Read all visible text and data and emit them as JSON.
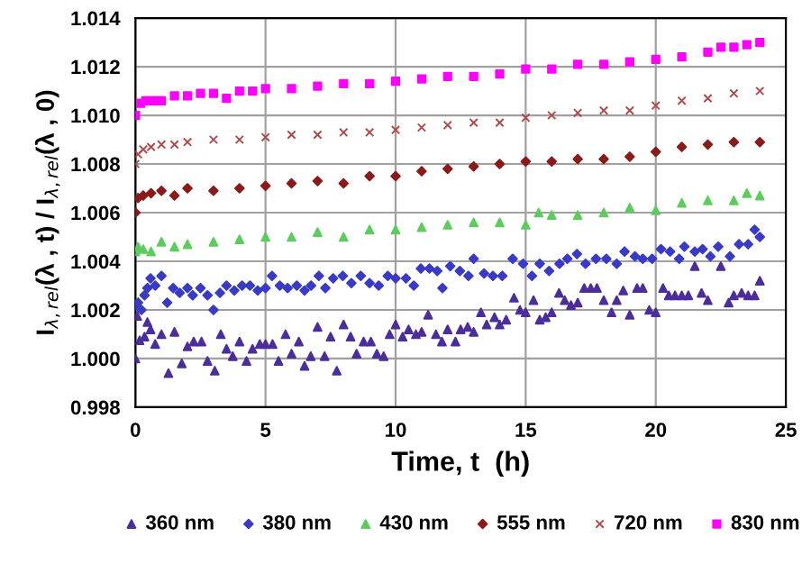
{
  "chart_data": {
    "type": "scatter",
    "xlabel": "Time, t  (h)",
    "ylabel": "I$_{λ,rel}$(λ , t) / I$_{λ,rel}$(λ , 0)",
    "xlim": [
      0,
      25
    ],
    "xticks": [
      0,
      5,
      10,
      15,
      20,
      25
    ],
    "ylim": [
      0.998,
      1.014
    ],
    "yticks": [
      {
        "value": 0.998,
        "label": "0.998"
      },
      {
        "value": 1.0,
        "label": "1.000"
      },
      {
        "value": 1.002,
        "label": "1.002"
      },
      {
        "value": 1.004,
        "label": "1.004"
      },
      {
        "value": 1.006,
        "label": "1.006"
      },
      {
        "value": 1.008,
        "label": "1.008"
      },
      {
        "value": 1.01,
        "label": "1.010"
      },
      {
        "value": 1.012,
        "label": "1.012"
      },
      {
        "value": 1.014,
        "label": "1.014"
      }
    ],
    "grid": true,
    "legend": "bottom",
    "series": [
      {
        "name": "360 nm",
        "color": "#4b2d9b",
        "marker": "triangle",
        "x": [
          0,
          0.07,
          0.16,
          0.35,
          0.46,
          0.58,
          0.76,
          1.0,
          1.27,
          1.5,
          1.78,
          2.0,
          2.24,
          2.54,
          2.77,
          3.05,
          3.28,
          3.5,
          3.74,
          4.0,
          4.27,
          4.5,
          4.78,
          5.0,
          5.27,
          5.5,
          5.77,
          6.0,
          6.28,
          6.5,
          6.74,
          7.0,
          7.27,
          7.5,
          7.74,
          8.0,
          8.27,
          8.5,
          8.77,
          9.05,
          9.28,
          9.54,
          9.77,
          10.0,
          10.27,
          10.5,
          10.78,
          11.0,
          11.25,
          11.55,
          11.78,
          12.0,
          12.3,
          12.5,
          12.77,
          13.0,
          13.28,
          13.5,
          13.8,
          14.0,
          14.25,
          14.55,
          14.78,
          15.0,
          15.3,
          15.54,
          15.77,
          16.0,
          16.28,
          16.5,
          16.74,
          17.0,
          17.25,
          17.5,
          17.74,
          18.0,
          18.3,
          18.5,
          18.75,
          19.0,
          19.28,
          19.5,
          19.75,
          20.0,
          20.28,
          20.5,
          20.74,
          21.0,
          21.25,
          21.5,
          21.76,
          22.0,
          22.5,
          22.8,
          23.0,
          23.3,
          23.55,
          23.8,
          24.0
        ],
        "values": [
          1.0,
          1.00175,
          1.00075,
          1.0009,
          1.0015,
          1.0012,
          1.0006,
          1.001,
          0.9994,
          1.0011,
          0.9998,
          1.0005,
          1.0007,
          1.0007,
          0.9999,
          0.9995,
          1.001,
          1.0004,
          1.0001,
          1.0007,
          0.9999,
          1.0004,
          1.0006,
          1.0006,
          1.0006,
          0.9999,
          1.001,
          1.0002,
          1.0007,
          0.9997,
          1.0001,
          1.0013,
          1.0001,
          1.0009,
          0.9995,
          1.0014,
          1.0009,
          1.0002,
          1.0007,
          1.0007,
          1.0002,
          1.0001,
          1.001,
          1.0014,
          1.0009,
          1.0012,
          1.001,
          1.0011,
          1.0018,
          1.001,
          1.0007,
          1.0012,
          1.0007,
          1.0012,
          1.0013,
          1.0011,
          1.0019,
          1.0014,
          1.0017,
          1.0014,
          1.0016,
          1.0025,
          1.002,
          1.0019,
          1.0024,
          1.0016,
          1.0017,
          1.0019,
          1.0027,
          1.0024,
          1.0022,
          1.0023,
          1.0029,
          1.0029,
          1.0029,
          1.0024,
          1.0019,
          1.0024,
          1.0028,
          1.0018,
          1.0029,
          1.0029,
          1.002,
          1.0019,
          1.0029,
          1.0026,
          1.0026,
          1.0026,
          1.0026,
          1.0038,
          1.0027,
          1.0024,
          1.0038,
          1.0023,
          1.0026,
          1.0027,
          1.0026,
          1.0026,
          1.0032
        ]
      },
      {
        "name": "380 nm",
        "color": "#3a3ac8",
        "marker": "diamond",
        "x": [
          0,
          0.1,
          0.23,
          0.35,
          0.46,
          0.58,
          0.76,
          1.0,
          1.22,
          1.45,
          1.7,
          2.0,
          2.2,
          2.5,
          2.77,
          3.0,
          3.25,
          3.5,
          3.8,
          4.1,
          4.4,
          4.7,
          5.0,
          5.25,
          5.55,
          5.85,
          6.2,
          6.5,
          6.75,
          7.05,
          7.3,
          7.6,
          7.97,
          8.3,
          8.66,
          9.0,
          9.35,
          9.7,
          10.0,
          10.4,
          10.7,
          10.97,
          11.3,
          11.6,
          11.8,
          12.1,
          12.47,
          12.8,
          13.0,
          13.4,
          13.74,
          14.1,
          14.5,
          14.9,
          15.24,
          15.54,
          15.9,
          16.3,
          16.6,
          16.97,
          17.3,
          17.7,
          18.1,
          18.5,
          18.8,
          19.2,
          19.5,
          19.86,
          20.2,
          20.55,
          20.9,
          21.1,
          21.5,
          21.8,
          22.1,
          22.4,
          22.85,
          23.2,
          23.55,
          23.8,
          24.0
        ],
        "values": [
          1.0022,
          1.0023,
          1.002,
          1.0026,
          1.0029,
          1.0033,
          1.003,
          1.0034,
          1.0023,
          1.0029,
          1.0027,
          1.0029,
          1.0026,
          1.0029,
          1.0026,
          1.002,
          1.0027,
          1.003,
          1.0028,
          1.003,
          1.003,
          1.0028,
          1.0029,
          1.0034,
          1.003,
          1.0029,
          1.003,
          1.0028,
          1.003,
          1.0034,
          1.0029,
          1.0033,
          1.0034,
          1.0031,
          1.0034,
          1.0031,
          1.003,
          1.0034,
          1.0033,
          1.0033,
          1.003,
          1.0037,
          1.0037,
          1.0036,
          1.0029,
          1.0038,
          1.0036,
          1.0034,
          1.0041,
          1.0035,
          1.0034,
          1.0034,
          1.0041,
          1.0039,
          1.0034,
          1.0039,
          1.0036,
          1.0039,
          1.0041,
          1.0043,
          1.0039,
          1.0041,
          1.0041,
          1.0039,
          1.0044,
          1.0042,
          1.0041,
          1.0041,
          1.0045,
          1.0044,
          1.0041,
          1.0046,
          1.0044,
          1.0045,
          1.0042,
          1.0046,
          1.0042,
          1.0047,
          1.0047,
          1.0053,
          1.005
        ]
      },
      {
        "name": "430 nm",
        "color": "#5ccc5c",
        "marker": "triangle",
        "x": [
          0,
          0.1,
          0.3,
          0.6,
          1,
          1.5,
          2,
          3,
          4,
          5,
          6,
          7,
          8,
          9,
          10,
          11,
          12,
          13,
          14,
          15,
          15.5,
          16,
          17,
          18,
          19,
          20,
          21,
          22,
          23,
          23.5,
          24
        ],
        "values": [
          1.0044,
          1.0046,
          1.0045,
          1.0044,
          1.0048,
          1.0046,
          1.0047,
          1.0048,
          1.0049,
          1.005,
          1.005,
          1.0052,
          1.005,
          1.0053,
          1.0053,
          1.0054,
          1.0055,
          1.0056,
          1.0056,
          1.0055,
          1.006,
          1.0059,
          1.0059,
          1.006,
          1.0062,
          1.0061,
          1.0064,
          1.0065,
          1.0065,
          1.0068,
          1.0067
        ]
      },
      {
        "name": "555 nm",
        "color": "#8b1a1a",
        "marker": "diamond",
        "x": [
          0,
          0.1,
          0.3,
          0.6,
          1,
          1.5,
          2,
          3,
          4,
          5,
          6,
          7,
          8,
          9,
          10,
          11,
          12,
          13,
          14,
          15,
          16,
          17,
          18,
          19,
          20,
          21,
          22,
          23,
          24
        ],
        "values": [
          1.006,
          1.0066,
          1.0067,
          1.0068,
          1.0069,
          1.0067,
          1.007,
          1.0069,
          1.007,
          1.0071,
          1.0072,
          1.0073,
          1.0072,
          1.0075,
          1.0075,
          1.0077,
          1.0078,
          1.0079,
          1.008,
          1.0081,
          1.0081,
          1.0082,
          1.0082,
          1.0083,
          1.0085,
          1.0087,
          1.0088,
          1.0089,
          1.0089
        ]
      },
      {
        "name": "720 nm",
        "color": "#b04a4a",
        "marker": "cross",
        "x": [
          0,
          0.1,
          0.3,
          0.6,
          1,
          1.5,
          2,
          3,
          4,
          5,
          6,
          7,
          8,
          9,
          10,
          11,
          12,
          13,
          14,
          15,
          16,
          17,
          18,
          19,
          20,
          21,
          22,
          23,
          24
        ],
        "values": [
          1.008,
          1.0084,
          1.0086,
          1.0087,
          1.0088,
          1.0088,
          1.0089,
          1.009,
          1.009,
          1.0091,
          1.0092,
          1.0092,
          1.0093,
          1.0093,
          1.0094,
          1.0095,
          1.0096,
          1.0097,
          1.0097,
          1.0099,
          1.01,
          1.0101,
          1.0102,
          1.0102,
          1.0104,
          1.0106,
          1.0107,
          1.0109,
          1.011
        ]
      },
      {
        "name": "830 nm",
        "color": "#ff00ff",
        "marker": "square",
        "x": [
          0,
          0.2,
          0.4,
          0.6,
          0.8,
          1.0,
          1.5,
          2,
          2.5,
          3,
          3.5,
          4,
          4.5,
          5,
          6,
          7,
          8,
          9,
          10,
          11,
          12,
          13,
          14,
          15,
          16,
          17,
          18,
          19,
          20,
          21,
          22,
          22.5,
          23,
          23.5,
          24
        ],
        "values": [
          1.01,
          1.0105,
          1.0106,
          1.0106,
          1.0106,
          1.0106,
          1.0108,
          1.0108,
          1.0109,
          1.0109,
          1.0107,
          1.011,
          1.011,
          1.0111,
          1.0111,
          1.0112,
          1.0113,
          1.0113,
          1.0114,
          1.0115,
          1.0116,
          1.0116,
          1.0117,
          1.0119,
          1.0119,
          1.0121,
          1.0121,
          1.0122,
          1.0123,
          1.0124,
          1.0126,
          1.0128,
          1.0128,
          1.0129,
          1.013
        ]
      }
    ]
  }
}
